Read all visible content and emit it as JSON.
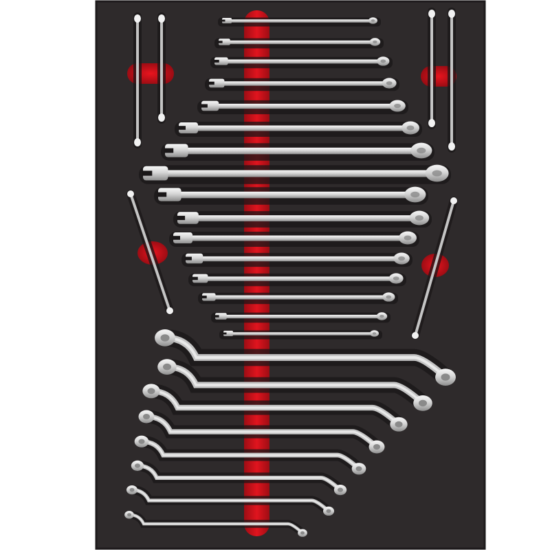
{
  "image": {
    "subject": "wrench-set-foam-tray",
    "colors": {
      "background": "#ffffff",
      "foam": "#2e2a2b",
      "foam_edge": "#1e1b1c",
      "cutout_shadow": "#1a1718",
      "accent_red": "#d0121b",
      "accent_red_dark": "#8e0b12",
      "steel_light": "#f2f2f2",
      "steel_mid": "#c4c4c4",
      "steel_dark": "#8a8a8a"
    }
  },
  "tray": {
    "tools": {
      "combination_wrenches": 16,
      "double_ring_offset_wrenches": 8,
      "small_wrenches_top_corners": 4,
      "diagonal_wrenches_sides": 2
    }
  }
}
